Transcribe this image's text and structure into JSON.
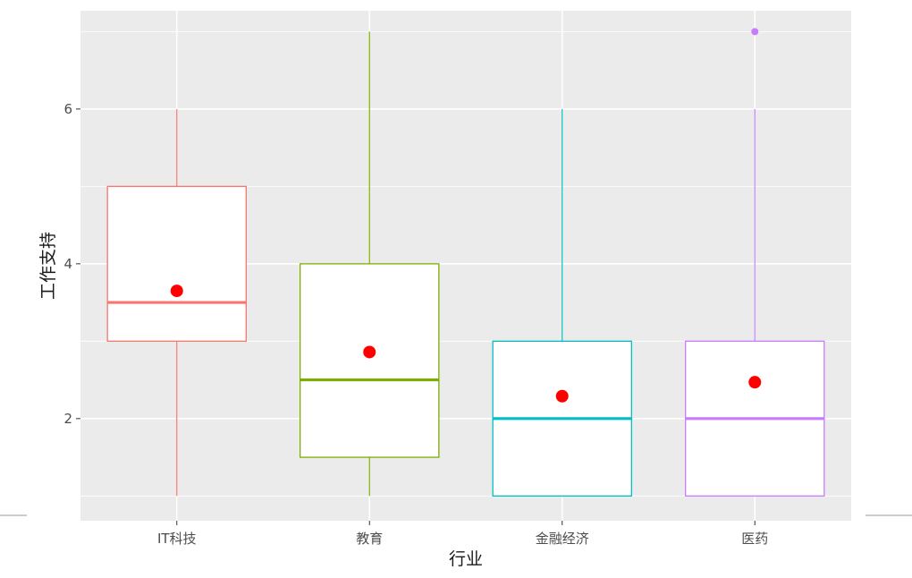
{
  "chart_data": {
    "type": "boxplot",
    "xlabel": "行业",
    "ylabel": "工作支持",
    "categories": [
      "IT科技",
      "教育",
      "金融经济",
      "医药"
    ],
    "colors": [
      "#F8766D",
      "#7CAE00",
      "#00BFC4",
      "#C77CFF"
    ],
    "mean_color": "#FF0000",
    "ylim": [
      0.68,
      7.27
    ],
    "yticks": [
      2,
      4,
      6
    ],
    "grid": true,
    "legend": "none",
    "boxes": [
      {
        "category": "IT科技",
        "whisker_low": 1,
        "q1": 3,
        "median": 3.5,
        "q3": 5,
        "whisker_high": 6,
        "mean": 3.65,
        "outliers": []
      },
      {
        "category": "教育",
        "whisker_low": 1,
        "q1": 1.5,
        "median": 2.5,
        "q3": 4,
        "whisker_high": 7,
        "mean": 2.86,
        "outliers": []
      },
      {
        "category": "金融经济",
        "whisker_low": 1,
        "q1": 1,
        "median": 2,
        "q3": 3,
        "whisker_high": 6,
        "mean": 2.29,
        "outliers": []
      },
      {
        "category": "医药",
        "whisker_low": 1,
        "q1": 1,
        "median": 2,
        "q3": 3,
        "whisker_high": 6,
        "mean": 2.47,
        "outliers": [
          7
        ]
      }
    ]
  }
}
